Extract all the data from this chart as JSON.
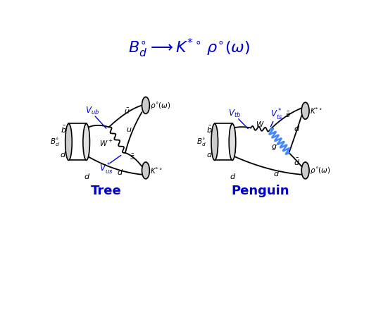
{
  "title": "$B_d^{\\circ} \\longrightarrow K^{*\\circ}\\, \\rho^{\\circ}(\\omega)$",
  "title_color": "#0000CC",
  "title_fontsize": 16,
  "label_tree": "Tree",
  "label_penguin": "Penguin",
  "label_color": "#0000CC",
  "label_fontsize": 13,
  "bg_color": "#ffffff",
  "line_color": "#000000",
  "blue_color": "#0000CC",
  "gluon_color": "#4488FF"
}
